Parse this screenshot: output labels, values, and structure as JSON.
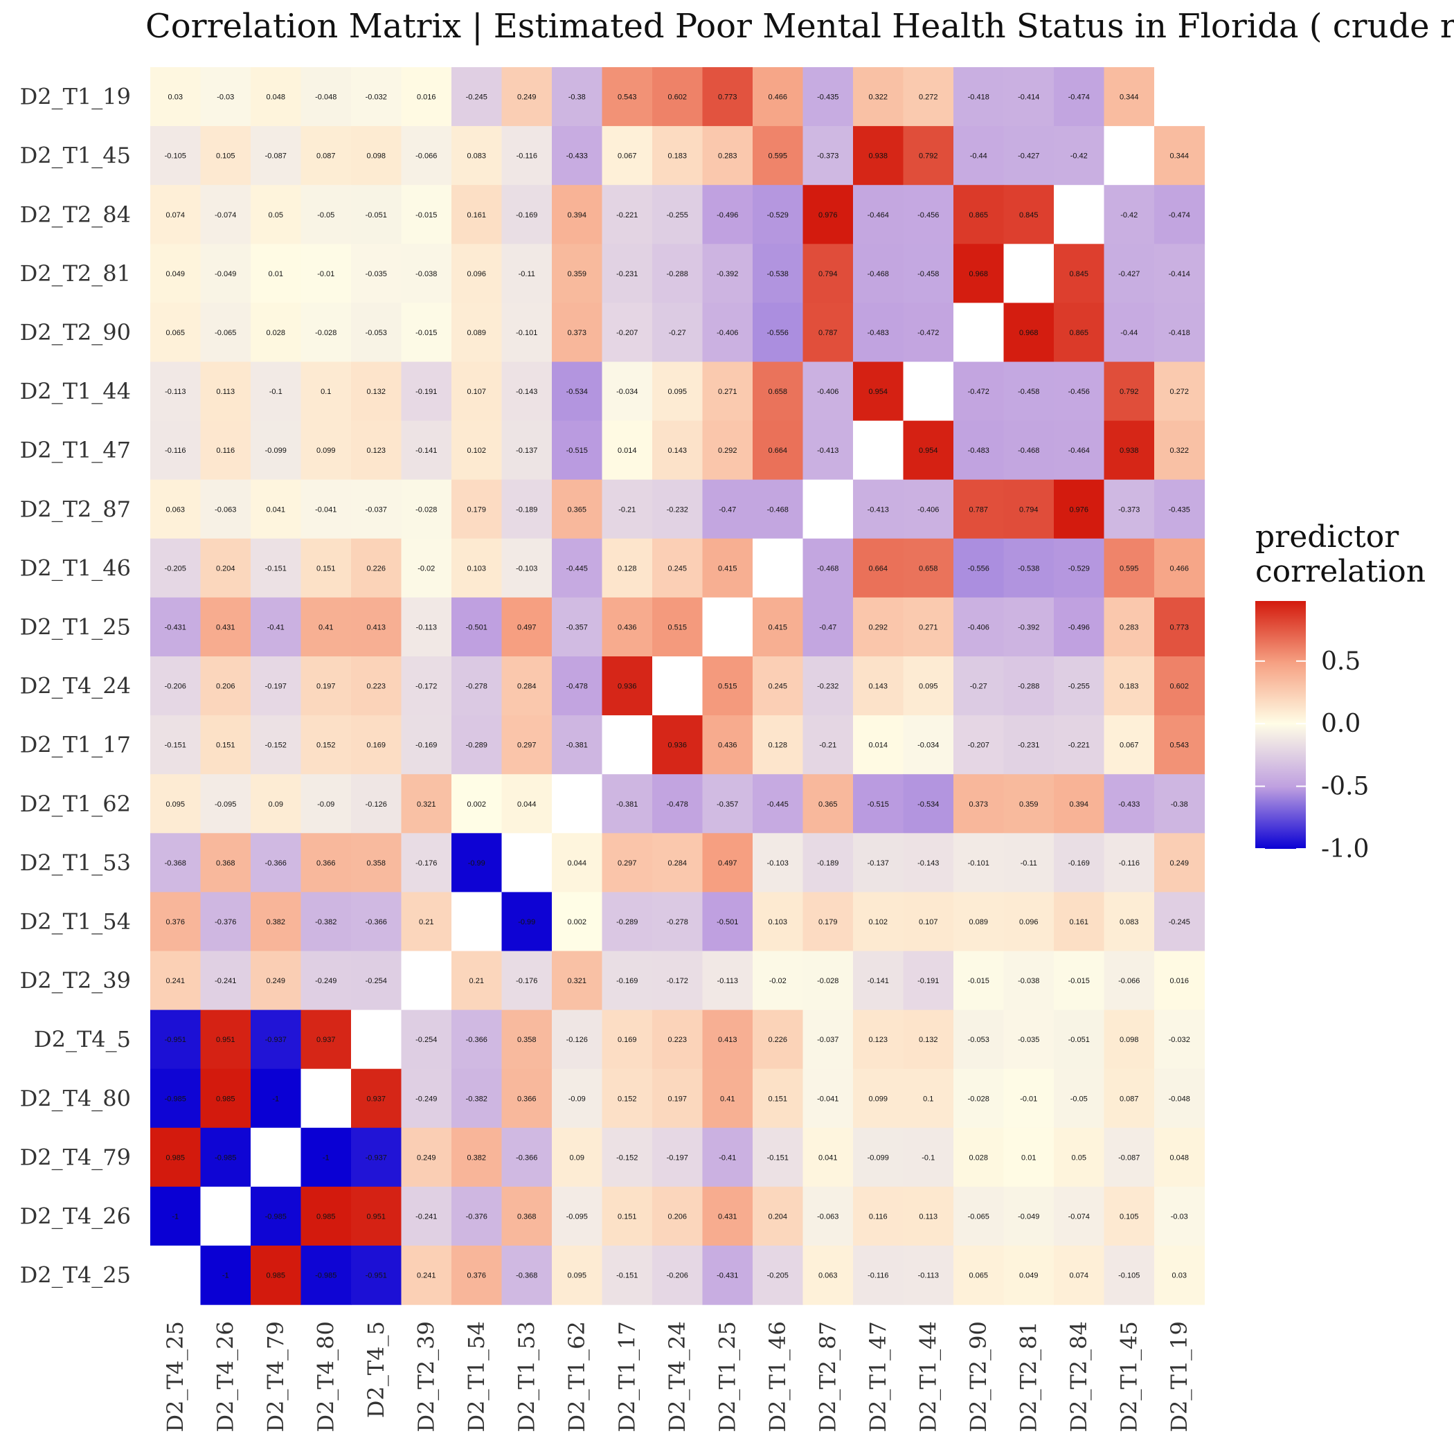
{
  "chart_data": {
    "type": "heatmap",
    "title": "Correlation Matrix | Estimated Poor Mental Health Status in Florida ( crude r",
    "xlabel": "",
    "ylabel": "",
    "legend_title": [
      "predictor",
      "correlation"
    ],
    "legend_ticks": [
      0.5,
      0.0,
      -0.5,
      -1.0
    ],
    "legend_tick_labels": [
      "0.5",
      "0.0",
      "-0.5",
      "-1.0"
    ],
    "legend_range": [
      -1.0,
      0.98
    ],
    "legend_placement": "right",
    "grid": false,
    "colors": {
      "low": "#0a00d4",
      "mid": "#fffde6",
      "high": "#d31a0d",
      "diagonal": "#ffffff"
    },
    "x_labels": [
      "D2_T4_25",
      "D2_T4_26",
      "D2_T4_79",
      "D2_T4_80",
      "D2_T4_5",
      "D2_T2_39",
      "D2_T1_54",
      "D2_T1_53",
      "D2_T1_62",
      "D2_T1_17",
      "D2_T4_24",
      "D2_T1_25",
      "D2_T1_46",
      "D2_T2_87",
      "D2_T1_47",
      "D2_T1_44",
      "D2_T2_90",
      "D2_T2_81",
      "D2_T2_84",
      "D2_T1_45",
      "D2_T1_19"
    ],
    "y_labels": [
      "D2_T1_19",
      "D2_T1_45",
      "D2_T2_84",
      "D2_T2_81",
      "D2_T2_90",
      "D2_T1_44",
      "D2_T1_47",
      "D2_T2_87",
      "D2_T1_46",
      "D2_T1_25",
      "D2_T4_24",
      "D2_T1_17",
      "D2_T1_62",
      "D2_T1_53",
      "D2_T1_54",
      "D2_T2_39",
      "D2_T4_5",
      "D2_T4_80",
      "D2_T4_79",
      "D2_T4_26",
      "D2_T4_25"
    ],
    "values": [
      [
        "0.03",
        "-0.03",
        "0.048",
        "-0.048",
        "-0.032",
        "0.016",
        "-0.245",
        "0.249",
        "-0.38",
        "0.543",
        "0.602",
        "0.773",
        "0.466",
        "-0.435",
        "0.322",
        "0.272",
        "-0.418",
        "-0.414",
        "-0.474",
        "0.344",
        null
      ],
      [
        "-0.105",
        "0.105",
        "-0.087",
        "0.087",
        "0.098",
        "-0.066",
        "0.083",
        "-0.116",
        "-0.433",
        "0.067",
        "0.183",
        "0.283",
        "0.595",
        "-0.373",
        "0.938",
        "0.792",
        "-0.44",
        "-0.427",
        "-0.42",
        null,
        "0.344"
      ],
      [
        "0.074",
        "-0.074",
        "0.05",
        "-0.05",
        "-0.051",
        "-0.015",
        "0.161",
        "-0.169",
        "0.394",
        "-0.221",
        "-0.255",
        "-0.496",
        "-0.529",
        "0.976",
        "-0.464",
        "-0.456",
        "0.865",
        "0.845",
        null,
        "-0.42",
        "-0.474"
      ],
      [
        "0.049",
        "-0.049",
        "0.01",
        "-0.01",
        "-0.035",
        "-0.038",
        "0.096",
        "-0.11",
        "0.359",
        "-0.231",
        "-0.288",
        "-0.392",
        "-0.538",
        "0.794",
        "-0.468",
        "-0.458",
        "0.968",
        null,
        "0.845",
        "-0.427",
        "-0.414"
      ],
      [
        "0.065",
        "-0.065",
        "0.028",
        "-0.028",
        "-0.053",
        "-0.015",
        "0.089",
        "-0.101",
        "0.373",
        "-0.207",
        "-0.27",
        "-0.406",
        "-0.556",
        "0.787",
        "-0.483",
        "-0.472",
        null,
        "0.968",
        "0.865",
        "-0.44",
        "-0.418"
      ],
      [
        "-0.113",
        "0.113",
        "-0.1",
        "0.1",
        "0.132",
        "-0.191",
        "0.107",
        "-0.143",
        "-0.534",
        "-0.034",
        "0.095",
        "0.271",
        "0.658",
        "-0.406",
        "0.954",
        null,
        "-0.472",
        "-0.458",
        "-0.456",
        "0.792",
        "0.272"
      ],
      [
        "-0.116",
        "0.116",
        "-0.099",
        "0.099",
        "0.123",
        "-0.141",
        "0.102",
        "-0.137",
        "-0.515",
        "0.014",
        "0.143",
        "0.292",
        "0.664",
        "-0.413",
        null,
        "0.954",
        "-0.483",
        "-0.468",
        "-0.464",
        "0.938",
        "0.322"
      ],
      [
        "0.063",
        "-0.063",
        "0.041",
        "-0.041",
        "-0.037",
        "-0.028",
        "0.179",
        "-0.189",
        "0.365",
        "-0.21",
        "-0.232",
        "-0.47",
        "-0.468",
        null,
        "-0.413",
        "-0.406",
        "0.787",
        "0.794",
        "0.976",
        "-0.373",
        "-0.435"
      ],
      [
        "-0.205",
        "0.204",
        "-0.151",
        "0.151",
        "0.226",
        "-0.02",
        "0.103",
        "-0.103",
        "-0.445",
        "0.128",
        "0.245",
        "0.415",
        null,
        "-0.468",
        "0.664",
        "0.658",
        "-0.556",
        "-0.538",
        "-0.529",
        "0.595",
        "0.466"
      ],
      [
        "-0.431",
        "0.431",
        "-0.41",
        "0.41",
        "0.413",
        "-0.113",
        "-0.501",
        "0.497",
        "-0.357",
        "0.436",
        "0.515",
        null,
        "0.415",
        "-0.47",
        "0.292",
        "0.271",
        "-0.406",
        "-0.392",
        "-0.496",
        "0.283",
        "0.773"
      ],
      [
        "-0.206",
        "0.206",
        "-0.197",
        "0.197",
        "0.223",
        "-0.172",
        "-0.278",
        "0.284",
        "-0.478",
        "0.936",
        null,
        "0.515",
        "0.245",
        "-0.232",
        "0.143",
        "0.095",
        "-0.27",
        "-0.288",
        "-0.255",
        "0.183",
        "0.602"
      ],
      [
        "-0.151",
        "0.151",
        "-0.152",
        "0.152",
        "0.169",
        "-0.169",
        "-0.289",
        "0.297",
        "-0.381",
        null,
        "0.936",
        "0.436",
        "0.128",
        "-0.21",
        "0.014",
        "-0.034",
        "-0.207",
        "-0.231",
        "-0.221",
        "0.067",
        "0.543"
      ],
      [
        "0.095",
        "-0.095",
        "0.09",
        "-0.09",
        "-0.126",
        "0.321",
        "0.002",
        "0.044",
        null,
        "-0.381",
        "-0.478",
        "-0.357",
        "-0.445",
        "0.365",
        "-0.515",
        "-0.534",
        "0.373",
        "0.359",
        "0.394",
        "-0.433",
        "-0.38"
      ],
      [
        "-0.368",
        "0.368",
        "-0.366",
        "0.366",
        "0.358",
        "-0.176",
        "-0.99",
        null,
        "0.044",
        "0.297",
        "0.284",
        "0.497",
        "-0.103",
        "-0.189",
        "-0.137",
        "-0.143",
        "-0.101",
        "-0.11",
        "-0.169",
        "-0.116",
        "0.249"
      ],
      [
        "0.376",
        "-0.376",
        "0.382",
        "-0.382",
        "-0.366",
        "0.21",
        null,
        "-0.99",
        "0.002",
        "-0.289",
        "-0.278",
        "-0.501",
        "0.103",
        "0.179",
        "0.102",
        "0.107",
        "0.089",
        "0.096",
        "0.161",
        "0.083",
        "-0.245"
      ],
      [
        "0.241",
        "-0.241",
        "0.249",
        "-0.249",
        "-0.254",
        null,
        "0.21",
        "-0.176",
        "0.321",
        "-0.169",
        "-0.172",
        "-0.113",
        "-0.02",
        "-0.028",
        "-0.141",
        "-0.191",
        "-0.015",
        "-0.038",
        "-0.015",
        "-0.066",
        "0.016"
      ],
      [
        "-0.951",
        "0.951",
        "-0.937",
        "0.937",
        null,
        "-0.254",
        "-0.366",
        "0.358",
        "-0.126",
        "0.169",
        "0.223",
        "0.413",
        "0.226",
        "-0.037",
        "0.123",
        "0.132",
        "-0.053",
        "-0.035",
        "-0.051",
        "0.098",
        "-0.032"
      ],
      [
        "-0.985",
        "0.985",
        "-1",
        null,
        "0.937",
        "-0.249",
        "-0.382",
        "0.366",
        "-0.09",
        "0.152",
        "0.197",
        "0.41",
        "0.151",
        "-0.041",
        "0.099",
        "0.1",
        "-0.028",
        "-0.01",
        "-0.05",
        "0.087",
        "-0.048"
      ],
      [
        "0.985",
        "-0.985",
        null,
        "-1",
        "-0.937",
        "0.249",
        "0.382",
        "-0.366",
        "0.09",
        "-0.152",
        "-0.197",
        "-0.41",
        "-0.151",
        "0.041",
        "-0.099",
        "-0.1",
        "0.028",
        "0.01",
        "0.05",
        "-0.087",
        "0.048"
      ],
      [
        "-1",
        null,
        "-0.985",
        "0.985",
        "0.951",
        "-0.241",
        "-0.376",
        "0.368",
        "-0.095",
        "0.151",
        "0.206",
        "0.431",
        "0.204",
        "-0.063",
        "0.116",
        "0.113",
        "-0.065",
        "-0.049",
        "-0.074",
        "0.105",
        "-0.03"
      ],
      [
        null,
        "-1",
        "0.985",
        "-0.985",
        "-0.951",
        "0.241",
        "0.376",
        "-0.368",
        "0.095",
        "-0.151",
        "-0.206",
        "-0.431",
        "-0.205",
        "0.063",
        "-0.116",
        "-0.113",
        "0.065",
        "0.049",
        "0.074",
        "-0.105",
        "0.03"
      ]
    ]
  }
}
